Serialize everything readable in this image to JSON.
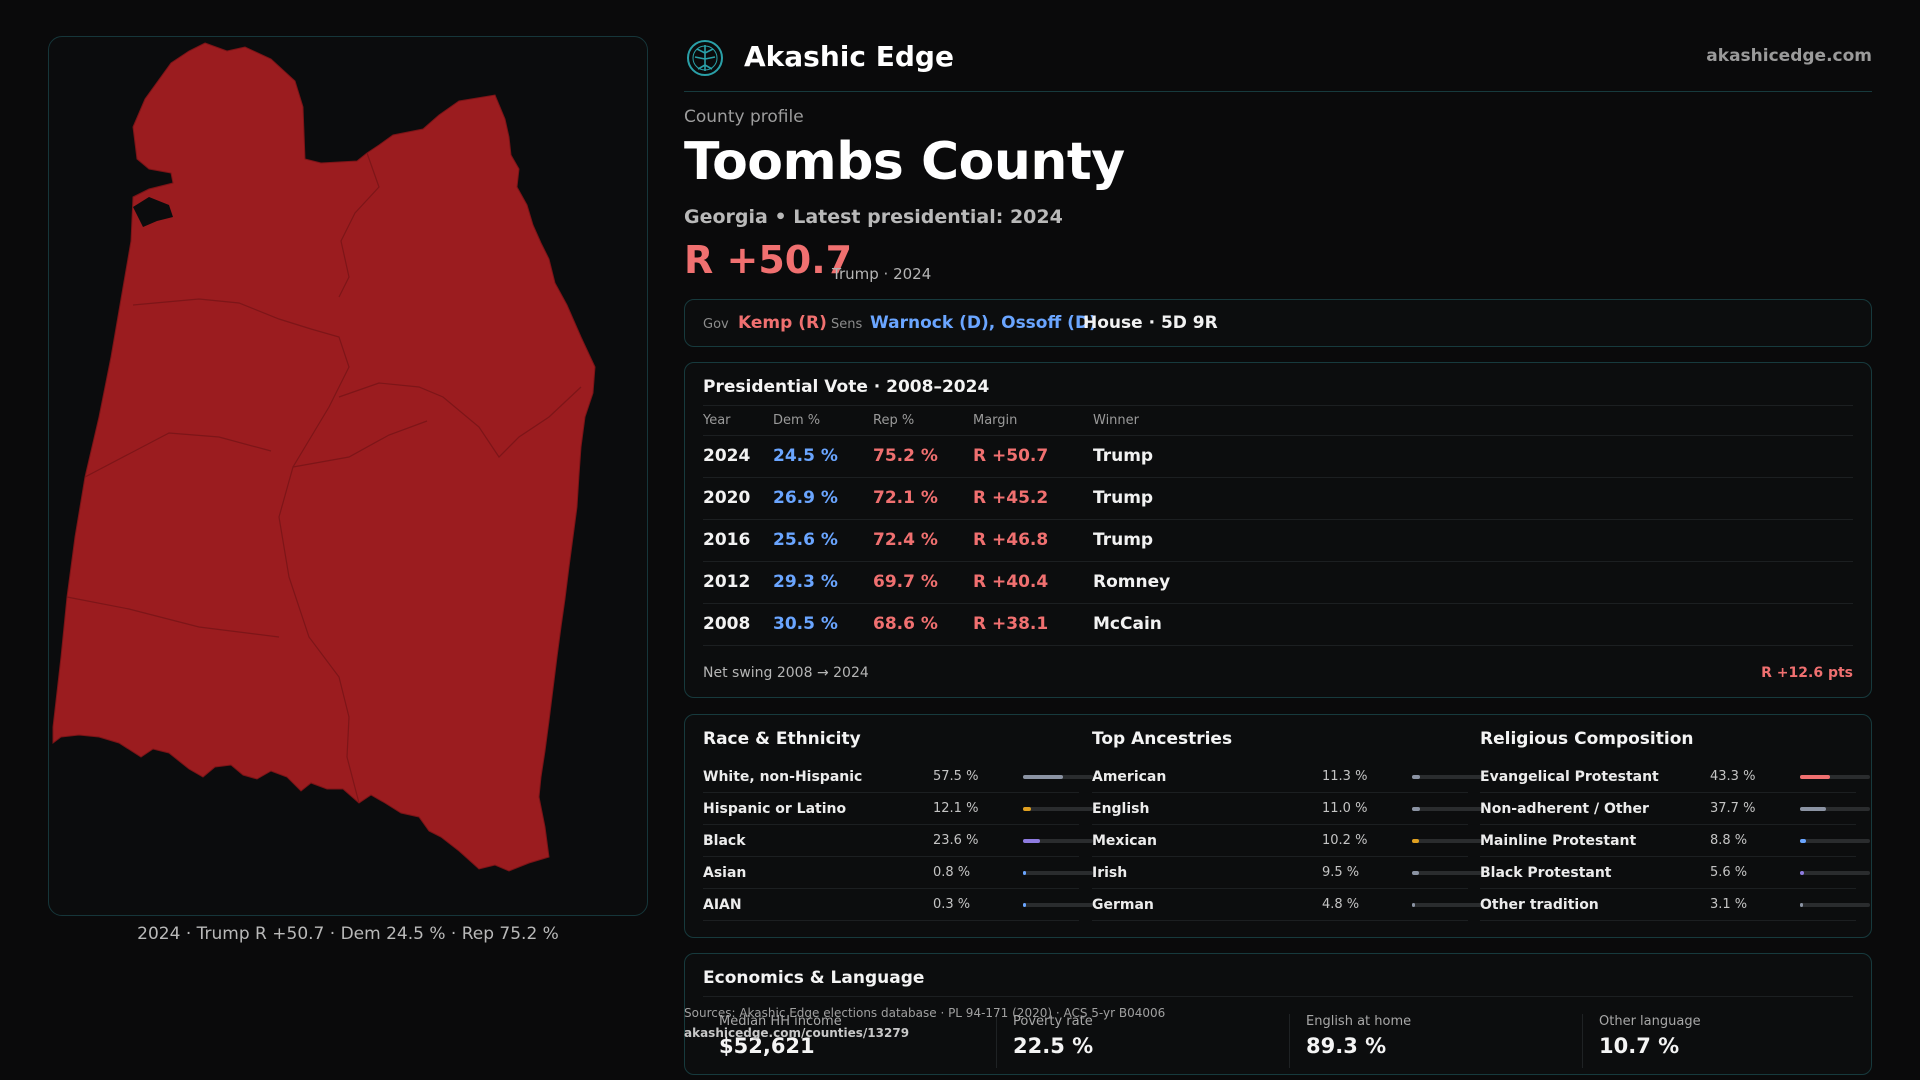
{
  "brand": {
    "name": "Akashic Edge",
    "url": "akashicedge.com",
    "logo_icon": "compass-tree-icon",
    "accent": "#2aa0a8"
  },
  "map": {
    "fill_color": "#9b1c1f",
    "caption": "2024 · Trump R +50.7 · Dem 24.5 % · Rep 75.2 %"
  },
  "header": {
    "eyebrow": "County profile",
    "title": "Toombs County",
    "subtitle": "Georgia • Latest presidential: 2024",
    "margin": "R +50.7",
    "margin_note": "Trump · 2024"
  },
  "officials": {
    "gov_label": "Gov",
    "gov_value": "Kemp (R)",
    "sens_label": "Sens",
    "sens_value": "Warnock (D), Ossoff (D)",
    "house_value": "House · 5D 9R"
  },
  "presidential": {
    "title": "Presidential Vote · 2008–2024",
    "columns": [
      "Year",
      "Dem %",
      "Rep %",
      "Margin",
      "Winner"
    ],
    "rows": [
      {
        "year": "2024",
        "dem": "24.5 %",
        "rep": "75.2 %",
        "margin": "R +50.7",
        "winner": "Trump"
      },
      {
        "year": "2020",
        "dem": "26.9 %",
        "rep": "72.1 %",
        "margin": "R +45.2",
        "winner": "Trump"
      },
      {
        "year": "2016",
        "dem": "25.6 %",
        "rep": "72.4 %",
        "margin": "R +46.8",
        "winner": "Trump"
      },
      {
        "year": "2012",
        "dem": "29.3 %",
        "rep": "69.7 %",
        "margin": "R +40.4",
        "winner": "Romney"
      },
      {
        "year": "2008",
        "dem": "30.5 %",
        "rep": "68.6 %",
        "margin": "R +38.1",
        "winner": "McCain"
      }
    ],
    "swing_label": "Net swing 2008 → 2024",
    "swing_value": "R +12.6 pts"
  },
  "demographics": {
    "race": {
      "title": "Race & Ethnicity",
      "items": [
        {
          "name": "White, non-Hispanic",
          "value": "57.5 %",
          "pct": 57.5,
          "color": "#8b93a3"
        },
        {
          "name": "Hispanic or Latino",
          "value": "12.1 %",
          "pct": 12.1,
          "color": "#e0a020"
        },
        {
          "name": "Black",
          "value": "23.6 %",
          "pct": 23.6,
          "color": "#8e7be0"
        },
        {
          "name": "Asian",
          "value": "0.8 %",
          "pct": 0.8,
          "color": "#6aa5ff"
        },
        {
          "name": "AIAN",
          "value": "0.3 %",
          "pct": 0.3,
          "color": "#6aa5ff"
        }
      ]
    },
    "ancestry": {
      "title": "Top Ancestries",
      "items": [
        {
          "name": "American",
          "value": "11.3 %",
          "pct": 11.3,
          "color": "#8b93a3"
        },
        {
          "name": "English",
          "value": "11.0 %",
          "pct": 11.0,
          "color": "#8b93a3"
        },
        {
          "name": "Mexican",
          "value": "10.2 %",
          "pct": 10.2,
          "color": "#e0a020"
        },
        {
          "name": "Irish",
          "value": "9.5 %",
          "pct": 9.5,
          "color": "#8b93a3"
        },
        {
          "name": "German",
          "value": "4.8 %",
          "pct": 4.8,
          "color": "#8b93a3"
        }
      ]
    },
    "religion": {
      "title": "Religious Composition",
      "items": [
        {
          "name": "Evangelical Protestant",
          "value": "43.3 %",
          "pct": 43.3,
          "color": "#f07070"
        },
        {
          "name": "Non-adherent / Other",
          "value": "37.7 %",
          "pct": 37.7,
          "color": "#8b93a3"
        },
        {
          "name": "Mainline Protestant",
          "value": "8.8 %",
          "pct": 8.8,
          "color": "#6aa5ff"
        },
        {
          "name": "Black Protestant",
          "value": "5.6 %",
          "pct": 5.6,
          "color": "#8e7be0"
        },
        {
          "name": "Other tradition",
          "value": "3.1 %",
          "pct": 3.1,
          "color": "#8b93a3"
        }
      ]
    }
  },
  "economics": {
    "title": "Economics & Language",
    "stats": [
      {
        "label": "Median HH income",
        "value": "$52,621"
      },
      {
        "label": "Poverty rate",
        "value": "22.5 %"
      },
      {
        "label": "English at home",
        "value": "89.3 %"
      },
      {
        "label": "Other language",
        "value": "10.7 %"
      }
    ]
  },
  "footer": {
    "sources": "Sources: Akashic Edge elections database · PL 94-171 (2020) · ACS 5-yr B04006",
    "url": "akashicedge.com/counties/13279"
  }
}
